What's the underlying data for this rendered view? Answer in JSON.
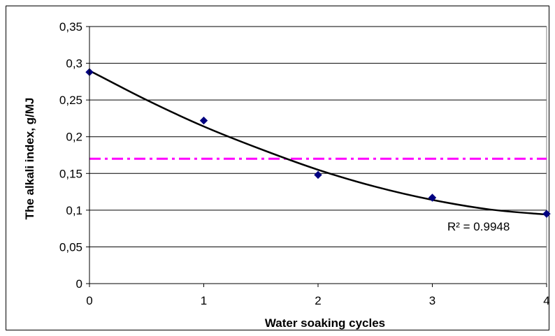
{
  "chart_data": {
    "type": "scatter",
    "title": "",
    "xlabel": "Water soaking cycles",
    "ylabel": "The alkali index,  g/MJ",
    "xlim": [
      0,
      4
    ],
    "ylim": [
      0,
      0.35
    ],
    "x_ticks": [
      0,
      1,
      2,
      3,
      4
    ],
    "y_ticks": [
      0,
      0.05,
      0.1,
      0.15,
      0.2,
      0.25,
      0.3,
      0.35
    ],
    "x_tick_labels": [
      "0",
      "1",
      "2",
      "3",
      "4"
    ],
    "y_tick_labels": [
      "0",
      "0,05",
      "0,1",
      "0,15",
      "0,2",
      "0,25",
      "0,3",
      "0,35"
    ],
    "grid": {
      "horizontal": true,
      "vertical": false
    },
    "series": [
      {
        "x": [
          0,
          1,
          2,
          3,
          4
        ],
        "y": [
          0.288,
          0.222,
          0.148,
          0.117,
          0.095
        ],
        "marker": "diamond",
        "color": "#000080"
      }
    ],
    "trendline": {
      "type": "polynomial",
      "order": 2,
      "x": [
        0,
        0.5,
        1,
        1.5,
        2,
        2.5,
        3,
        3.5,
        4
      ],
      "y": [
        0.29,
        0.25,
        0.214,
        0.183,
        0.155,
        0.132,
        0.114,
        0.101,
        0.094
      ],
      "color": "#000000",
      "r_squared_label": "R² = 0.9948"
    },
    "reference_line": {
      "y": 0.17,
      "style": "dash-dot",
      "color": "#ff00ff"
    }
  }
}
